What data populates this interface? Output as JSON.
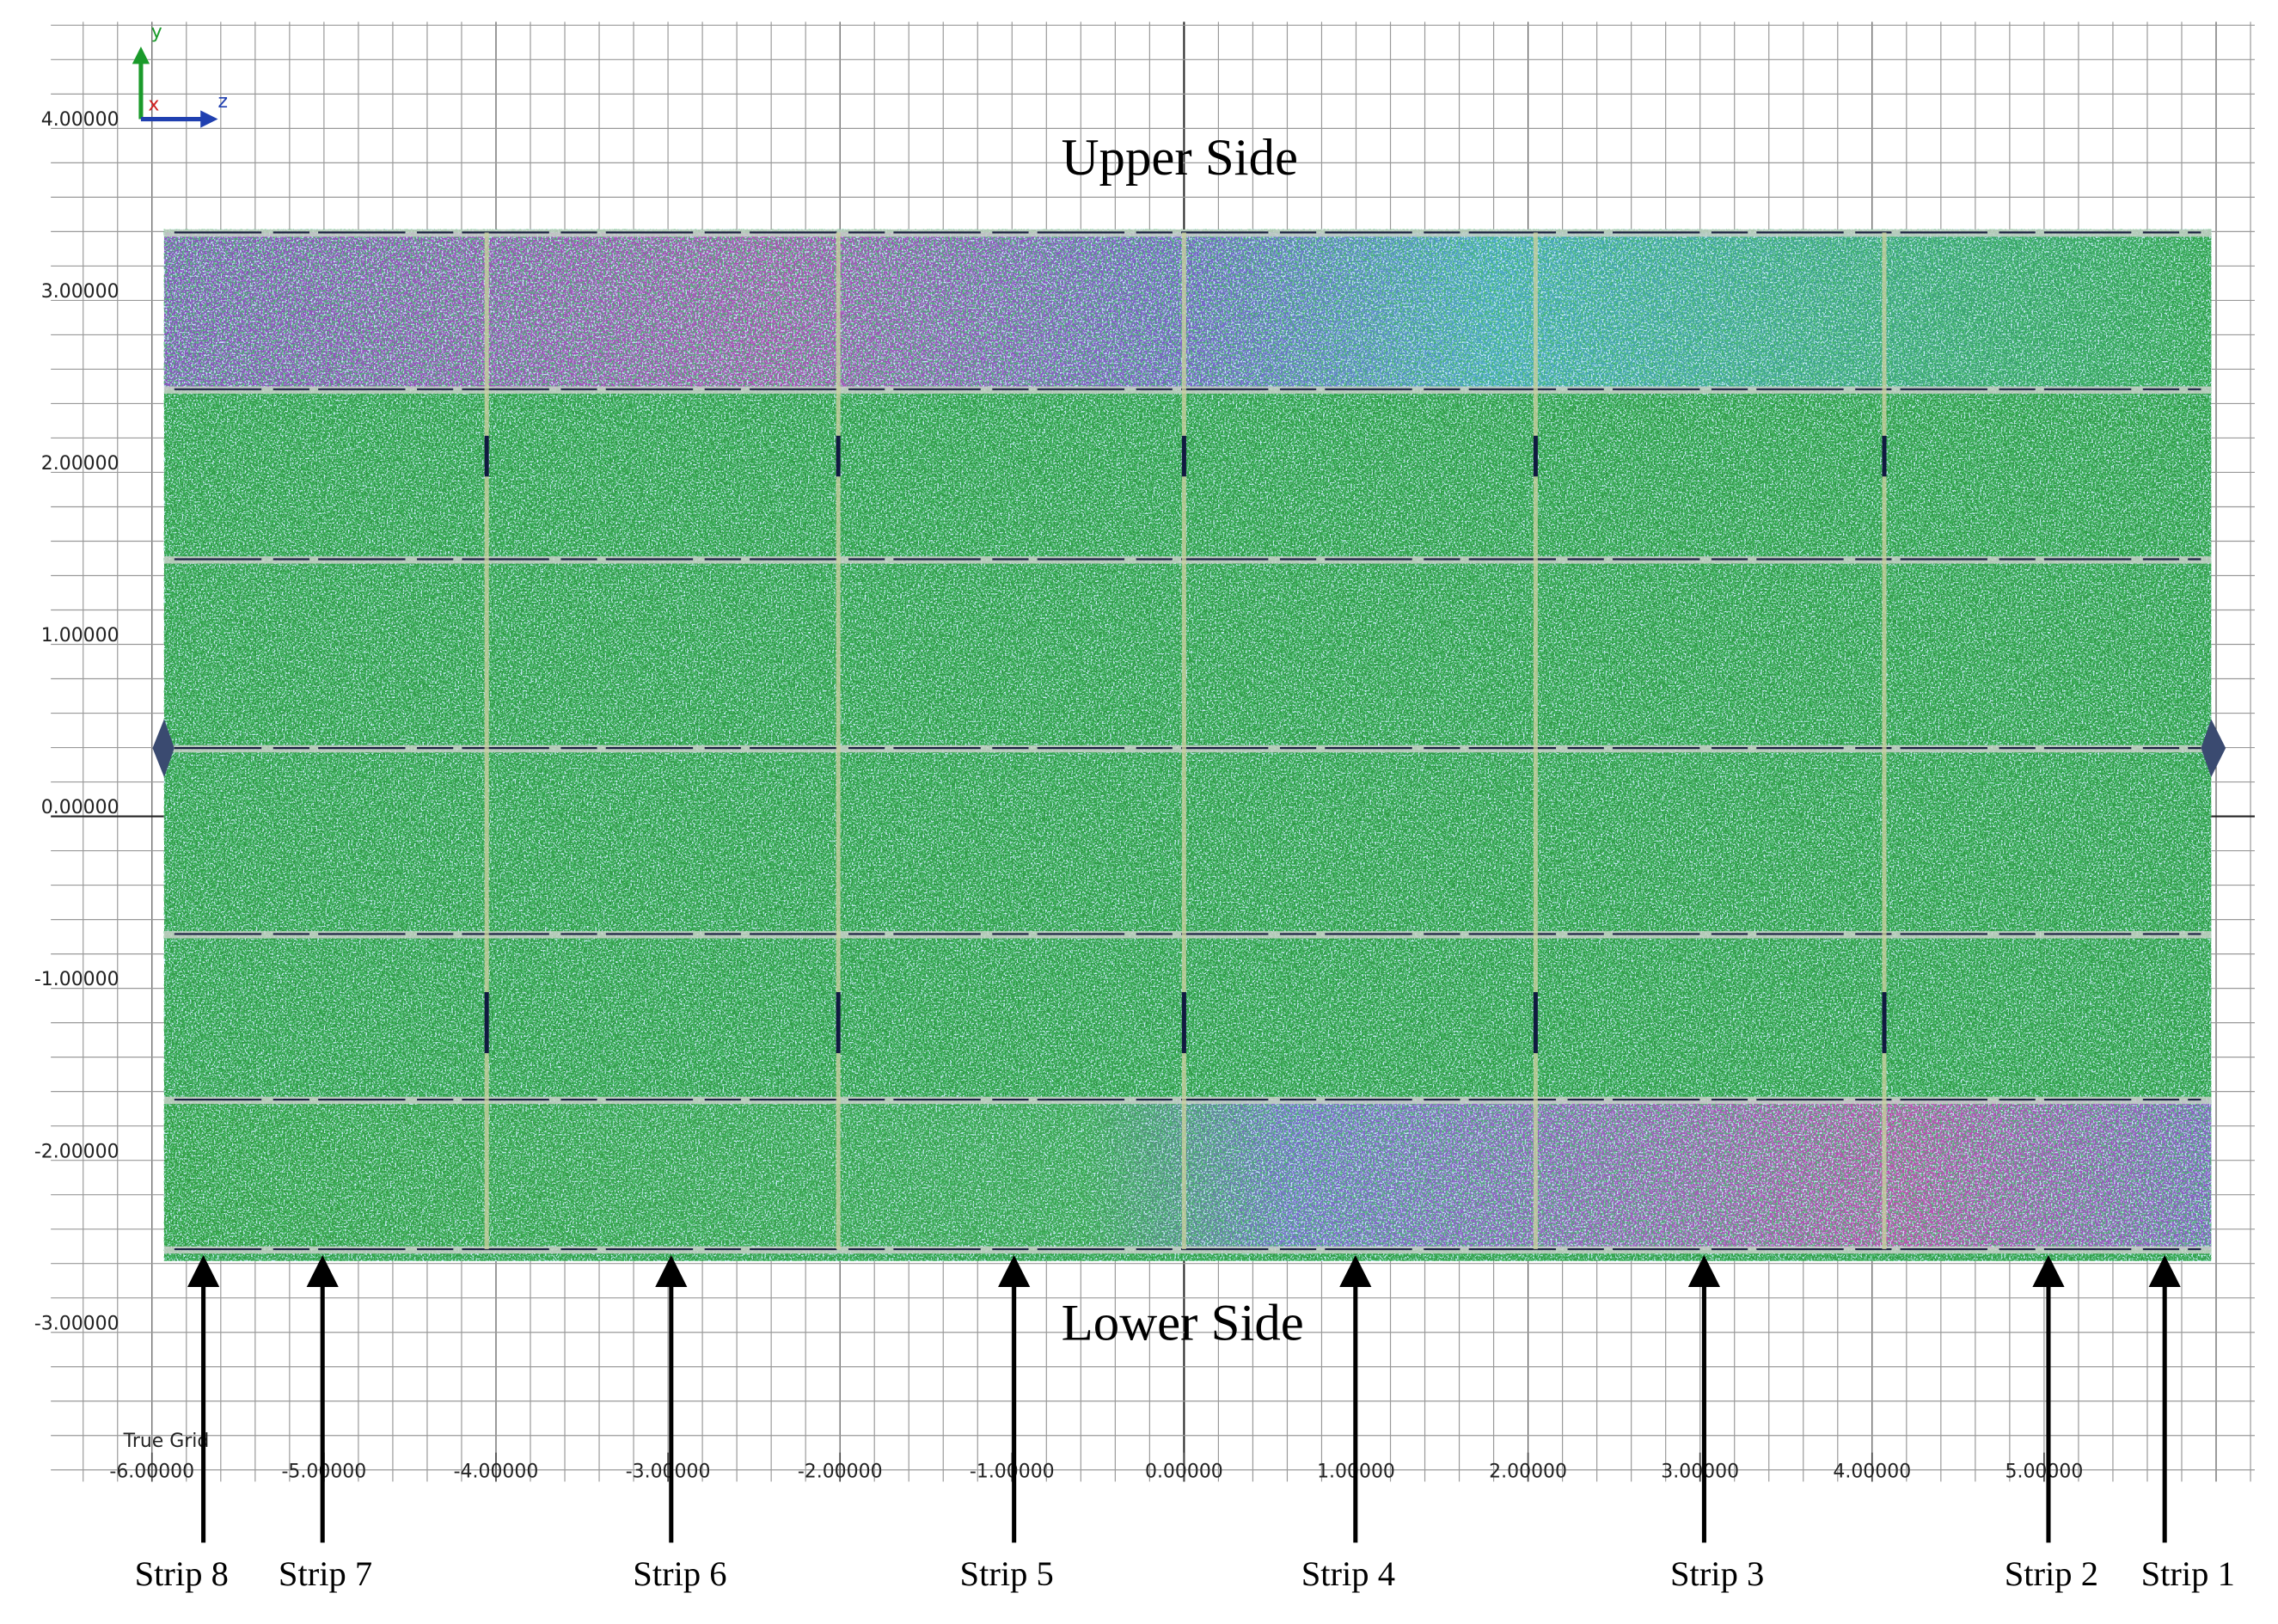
{
  "title_upper": "Upper Side",
  "title_lower": "Lower Side",
  "grid_label": "True Grid",
  "axis_indicator": {
    "up": "y",
    "right": "z",
    "out": "x"
  },
  "x_axis_labels": [
    "-6.00000",
    "-5.00000",
    "-4.00000",
    "-3.00000",
    "-2.00000",
    "-1.00000",
    "0.00000",
    "1.00000",
    "2.00000",
    "3.00000",
    "4.00000",
    "5.00000"
  ],
  "y_axis_labels": [
    "4.00000",
    "3.00000",
    "2.00000",
    "1.00000",
    "0.00000",
    "-1.00000",
    "-2.00000",
    "-3.00000"
  ],
  "strips": [
    "Strip 8",
    "Strip 7",
    "Strip 6",
    "Strip 5",
    "Strip 4",
    "Strip 3",
    "Strip 2",
    "Strip 1"
  ]
}
